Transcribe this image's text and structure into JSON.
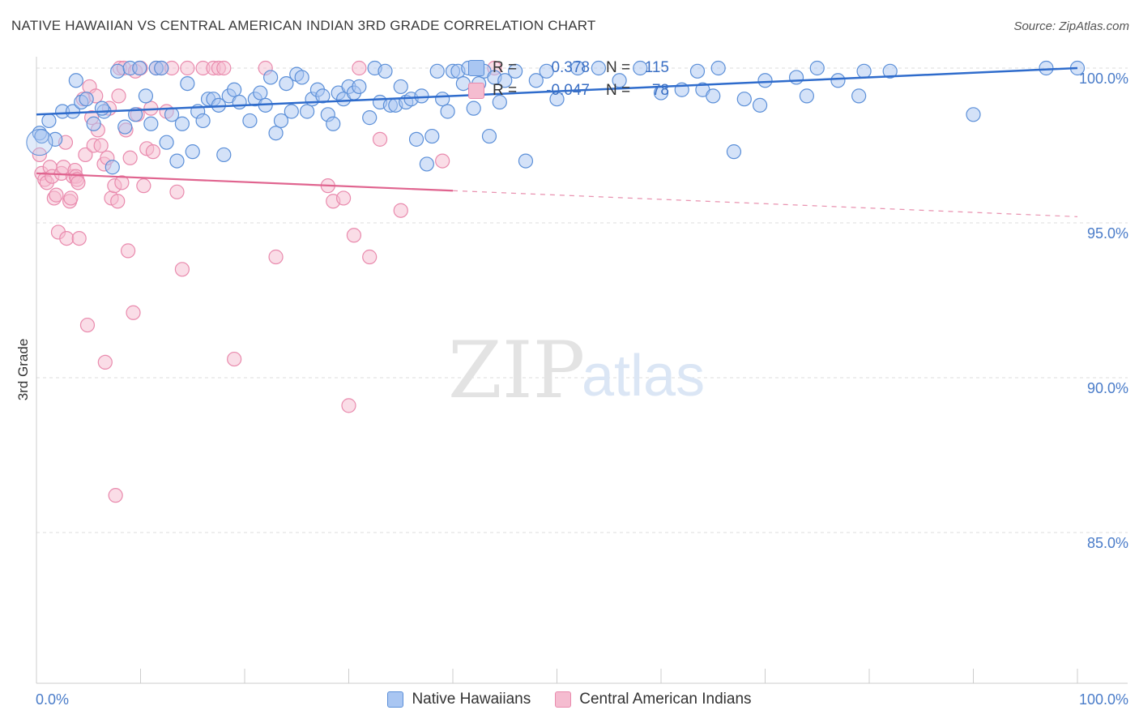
{
  "header": {
    "title": "NATIVE HAWAIIAN VS CENTRAL AMERICAN INDIAN 3RD GRADE CORRELATION CHART",
    "source": "Source: ZipAtlas.com"
  },
  "watermark": {
    "zip": "ZIP",
    "atlas": "atlas"
  },
  "stats": {
    "blue": {
      "r_label": "R =",
      "r_value": "0.378",
      "n_label": "N =",
      "n_value": "115"
    },
    "pink": {
      "r_label": "R =",
      "r_value": "-0.047",
      "n_label": "N =",
      "n_value": "78"
    }
  },
  "legend": {
    "blue_label": "Native Hawaiians",
    "pink_label": "Central American Indians"
  },
  "colors": {
    "blue_fill": "#a9c6f2",
    "blue_stroke": "#5b8fd8",
    "blue_line": "#2f6ccc",
    "pink_fill": "#f5bcd0",
    "pink_stroke": "#e98aad",
    "pink_line": "#e0648f",
    "axis_text": "#4a7cc9"
  },
  "chart_data": {
    "type": "scatter",
    "xlabel": "",
    "ylabel": "3rd Grade",
    "xlim": [
      0,
      100
    ],
    "ylim": [
      80.0,
      100.6
    ],
    "x_tick_labels": [
      "0.0%",
      "100.0%"
    ],
    "y_ticks": [
      {
        "value": 100,
        "label": "100.0%"
      },
      {
        "value": 95,
        "label": "95.0%"
      },
      {
        "value": 90,
        "label": "90.0%"
      },
      {
        "value": 85,
        "label": "85.0%"
      }
    ],
    "grid": true,
    "series": [
      {
        "name": "Native Hawaiians",
        "color": "blue",
        "trend": {
          "x": [
            0,
            100
          ],
          "y": [
            98.5,
            100.0
          ],
          "dashed_from": null
        },
        "points": [
          [
            0.3,
            97.9
          ],
          [
            0.5,
            97.8
          ],
          [
            1.2,
            98.3
          ],
          [
            1.8,
            97.7
          ],
          [
            2.5,
            98.6
          ],
          [
            3.5,
            98.6
          ],
          [
            3.8,
            99.6
          ],
          [
            4.3,
            98.9
          ],
          [
            4.8,
            99.0
          ],
          [
            5.5,
            98.2
          ],
          [
            6.5,
            98.6
          ],
          [
            6.3,
            98.7
          ],
          [
            7.3,
            96.8
          ],
          [
            7.8,
            99.9
          ],
          [
            8.5,
            98.1
          ],
          [
            9.0,
            100.0
          ],
          [
            9.5,
            98.5
          ],
          [
            9.9,
            100.0
          ],
          [
            10.5,
            99.1
          ],
          [
            11.0,
            98.2
          ],
          [
            11.5,
            100.0
          ],
          [
            12.0,
            100.0
          ],
          [
            12.5,
            97.6
          ],
          [
            13.0,
            98.5
          ],
          [
            13.5,
            97.0
          ],
          [
            14.0,
            98.2
          ],
          [
            14.5,
            99.5
          ],
          [
            15.0,
            97.3
          ],
          [
            15.5,
            98.6
          ],
          [
            16.0,
            98.3
          ],
          [
            16.5,
            99.0
          ],
          [
            17.0,
            99.0
          ],
          [
            17.5,
            98.8
          ],
          [
            18.0,
            97.2
          ],
          [
            18.5,
            99.1
          ],
          [
            19.0,
            99.3
          ],
          [
            19.5,
            98.9
          ],
          [
            20.5,
            98.3
          ],
          [
            21.0,
            99.0
          ],
          [
            21.5,
            99.2
          ],
          [
            22.0,
            98.8
          ],
          [
            22.5,
            99.7
          ],
          [
            23.0,
            97.9
          ],
          [
            23.5,
            98.3
          ],
          [
            24.0,
            99.5
          ],
          [
            24.5,
            98.6
          ],
          [
            25.0,
            99.8
          ],
          [
            25.5,
            99.7
          ],
          [
            26.0,
            98.6
          ],
          [
            26.5,
            99.0
          ],
          [
            27.0,
            99.3
          ],
          [
            27.5,
            99.1
          ],
          [
            28.0,
            98.5
          ],
          [
            28.5,
            98.2
          ],
          [
            29.0,
            99.2
          ],
          [
            29.5,
            99.0
          ],
          [
            30.0,
            99.4
          ],
          [
            30.5,
            99.2
          ],
          [
            31.0,
            99.4
          ],
          [
            32.0,
            98.4
          ],
          [
            32.5,
            100.0
          ],
          [
            33.0,
            98.9
          ],
          [
            33.5,
            99.9
          ],
          [
            34.0,
            98.8
          ],
          [
            34.5,
            98.8
          ],
          [
            35.0,
            99.4
          ],
          [
            35.5,
            98.9
          ],
          [
            36.0,
            99.0
          ],
          [
            36.5,
            97.7
          ],
          [
            37.0,
            99.1
          ],
          [
            37.5,
            96.9
          ],
          [
            38.0,
            97.8
          ],
          [
            38.5,
            99.9
          ],
          [
            39.0,
            99.0
          ],
          [
            39.5,
            98.6
          ],
          [
            40.0,
            99.9
          ],
          [
            40.5,
            99.9
          ],
          [
            41.0,
            99.5
          ],
          [
            41.5,
            100.0
          ],
          [
            42.0,
            98.7
          ],
          [
            42.5,
            99.5
          ],
          [
            43.0,
            99.9
          ],
          [
            43.5,
            97.8
          ],
          [
            44.0,
            99.7
          ],
          [
            44.5,
            98.9
          ],
          [
            45.0,
            99.6
          ],
          [
            46.0,
            99.9
          ],
          [
            47.0,
            97.0
          ],
          [
            48.0,
            99.6
          ],
          [
            49.0,
            99.9
          ],
          [
            50.0,
            99.0
          ],
          [
            52.0,
            100.0
          ],
          [
            54.0,
            100.0
          ],
          [
            56.0,
            99.6
          ],
          [
            58.0,
            100.0
          ],
          [
            60.0,
            99.2
          ],
          [
            62.0,
            99.3
          ],
          [
            63.5,
            99.9
          ],
          [
            64.0,
            99.3
          ],
          [
            65.0,
            99.1
          ],
          [
            65.5,
            100.0
          ],
          [
            67.0,
            97.3
          ],
          [
            68.0,
            99.0
          ],
          [
            69.5,
            98.8
          ],
          [
            70.0,
            99.6
          ],
          [
            73.0,
            99.7
          ],
          [
            74.0,
            99.1
          ],
          [
            75.0,
            100.0
          ],
          [
            77.0,
            99.6
          ],
          [
            79.0,
            99.1
          ],
          [
            79.5,
            99.9
          ],
          [
            82.0,
            99.9
          ],
          [
            90.0,
            98.5
          ],
          [
            97.0,
            100.0
          ],
          [
            100.0,
            100.0
          ]
        ]
      },
      {
        "name": "Central American Indians",
        "color": "pink",
        "trend": {
          "x": [
            0,
            100
          ],
          "y": [
            96.6,
            95.2
          ],
          "dashed_from": 40
        },
        "points": [
          [
            0.3,
            97.2
          ],
          [
            0.5,
            96.6
          ],
          [
            0.8,
            96.4
          ],
          [
            1.0,
            96.3
          ],
          [
            1.3,
            96.8
          ],
          [
            1.5,
            96.5
          ],
          [
            1.7,
            95.8
          ],
          [
            1.9,
            95.9
          ],
          [
            2.1,
            94.7
          ],
          [
            2.4,
            96.6
          ],
          [
            2.6,
            96.8
          ],
          [
            2.8,
            97.6
          ],
          [
            2.9,
            94.5
          ],
          [
            3.2,
            95.7
          ],
          [
            3.3,
            95.8
          ],
          [
            3.5,
            96.5
          ],
          [
            3.7,
            96.7
          ],
          [
            3.8,
            96.5
          ],
          [
            3.9,
            96.4
          ],
          [
            4.0,
            96.3
          ],
          [
            4.1,
            94.5
          ],
          [
            4.5,
            99.0
          ],
          [
            4.7,
            97.2
          ],
          [
            4.9,
            91.7
          ],
          [
            5.1,
            99.4
          ],
          [
            5.3,
            98.4
          ],
          [
            5.5,
            97.5
          ],
          [
            5.7,
            99.1
          ],
          [
            5.9,
            98.0
          ],
          [
            6.2,
            97.5
          ],
          [
            6.5,
            96.9
          ],
          [
            6.6,
            90.5
          ],
          [
            6.8,
            97.1
          ],
          [
            7.0,
            98.7
          ],
          [
            7.2,
            95.8
          ],
          [
            7.5,
            96.2
          ],
          [
            7.6,
            86.2
          ],
          [
            7.8,
            95.7
          ],
          [
            7.9,
            99.1
          ],
          [
            8.0,
            100.0
          ],
          [
            8.2,
            96.3
          ],
          [
            8.4,
            100.0
          ],
          [
            8.6,
            98.0
          ],
          [
            8.8,
            94.1
          ],
          [
            9.0,
            97.1
          ],
          [
            9.3,
            92.1
          ],
          [
            9.5,
            99.9
          ],
          [
            9.7,
            98.5
          ],
          [
            10.0,
            100.0
          ],
          [
            10.3,
            96.2
          ],
          [
            10.6,
            97.4
          ],
          [
            11.0,
            98.7
          ],
          [
            11.2,
            97.3
          ],
          [
            11.5,
            100.0
          ],
          [
            12.0,
            100.0
          ],
          [
            12.5,
            98.6
          ],
          [
            13.0,
            100.0
          ],
          [
            13.5,
            96.0
          ],
          [
            14.0,
            93.5
          ],
          [
            14.5,
            100.0
          ],
          [
            16.0,
            100.0
          ],
          [
            17.0,
            100.0
          ],
          [
            17.5,
            100.0
          ],
          [
            18.0,
            100.0
          ],
          [
            19.0,
            90.6
          ],
          [
            22.0,
            100.0
          ],
          [
            23.0,
            93.9
          ],
          [
            28.0,
            96.2
          ],
          [
            28.5,
            95.7
          ],
          [
            29.5,
            95.8
          ],
          [
            30.0,
            89.1
          ],
          [
            30.5,
            94.6
          ],
          [
            31.0,
            100.0
          ],
          [
            32.0,
            93.9
          ],
          [
            33.0,
            97.7
          ],
          [
            35.0,
            95.4
          ],
          [
            39.0,
            97.0
          ],
          [
            44.0,
            100.0
          ]
        ]
      }
    ]
  }
}
